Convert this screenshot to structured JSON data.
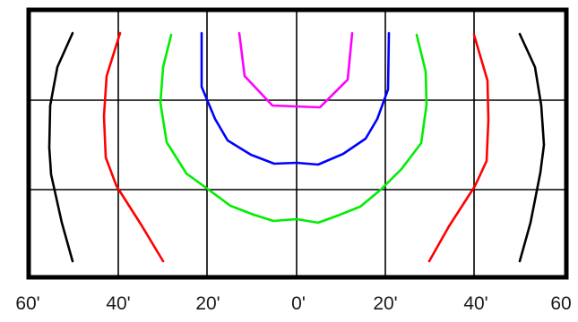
{
  "x_labels": [
    "60'",
    "40'",
    "20'",
    "0'",
    "20'",
    "40'",
    "60"
  ],
  "colors": {
    "frame": "#000000",
    "grid": "#000000",
    "magenta": "#ff00ff",
    "blue": "#0000ff",
    "green": "#00ee00",
    "red": "#ff0000",
    "black": "#000000"
  }
}
